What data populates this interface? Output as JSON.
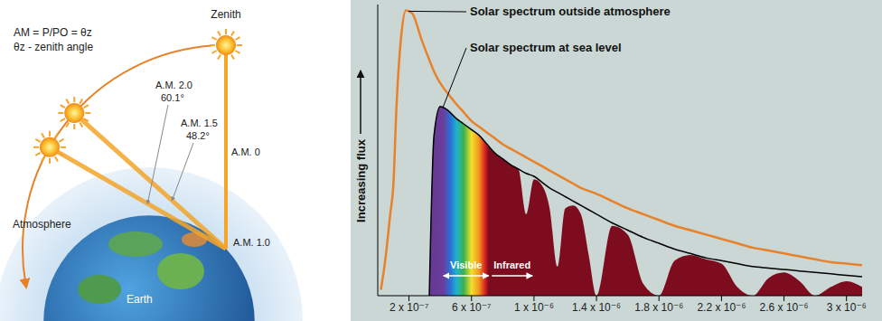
{
  "diagram": {
    "formula": "AM = P/PO = θz",
    "formula_note": "θz - zenith angle",
    "zenith_label": "Zenith",
    "atmosphere_label": "Atmosphere",
    "earth_label": "Earth",
    "positions": [
      {
        "label": "A.M. 0"
      },
      {
        "label": "A.M. 1.0"
      },
      {
        "label": "A.M. 1.5",
        "angle_label": "48.2°",
        "zenith_angle": 48.2
      },
      {
        "label": "A.M. 2.0",
        "angle_label": "60.1°",
        "zenith_angle": 60.1
      }
    ]
  },
  "chart_data": {
    "type": "line",
    "ylabel": "Increasing flux",
    "x": [
      2e-08,
      5e-08,
      8e-08,
      1e-07,
      1.2e-07,
      1.5e-07,
      1.8e-07,
      2.2e-07,
      2.8e-07,
      3.3e-07,
      3.6e-07,
      4e-07,
      4.4e-07,
      5e-07,
      5.5e-07,
      6e-07,
      6.5e-07,
      7e-07,
      7.5e-07,
      8e-07,
      8.5e-07,
      9e-07,
      9.5e-07,
      1e-06,
      1.05e-06,
      1.1e-06,
      1.15e-06,
      1.2e-06,
      1.25e-06,
      1.3e-06,
      1.35e-06,
      1.4e-06,
      1.5e-06,
      1.6e-06,
      1.7e-06,
      1.8e-06,
      1.9e-06,
      2e-06,
      2.1e-06,
      2.2e-06,
      2.3e-06,
      2.4e-06,
      2.5e-06,
      2.6e-06,
      2.7e-06,
      2.8e-06,
      2.9e-06,
      3e-06,
      3.1e-06
    ],
    "series": [
      {
        "type": "area",
        "color": "#7d0d1e",
        "values": [
          null,
          null,
          null,
          null,
          null,
          null,
          null,
          null,
          null,
          0,
          55,
          65,
          64,
          61,
          59,
          57,
          55,
          52,
          49,
          47,
          45,
          43.5,
          28,
          40,
          38,
          30,
          10,
          30,
          31,
          28,
          14,
          0,
          24,
          21,
          4,
          0,
          12,
          14,
          12.5,
          11,
          3,
          0,
          6,
          8,
          5,
          0,
          3,
          5,
          3
        ]
      },
      {
        "name": "Solar spectrum at sea level",
        "type": "line",
        "color": "#000000",
        "values": [
          null,
          null,
          null,
          null,
          null,
          null,
          null,
          null,
          null,
          0,
          55,
          65,
          64,
          61,
          59,
          57,
          55,
          52,
          49,
          47,
          45,
          43.5,
          42,
          41,
          39,
          37,
          35.5,
          34,
          32.5,
          31,
          29.5,
          28,
          25,
          22.5,
          20,
          18,
          16,
          14.5,
          13,
          12,
          11,
          10,
          9.5,
          9,
          8.5,
          8,
          7.5,
          7,
          6.5
        ]
      },
      {
        "name": "Solar spectrum outside atmosphere",
        "type": "line",
        "color": "#e8822a",
        "values": [
          2,
          13,
          28,
          38,
          65,
          89,
          98,
          97,
          88,
          81,
          77,
          73,
          70,
          66,
          63,
          60,
          58,
          56,
          54,
          52,
          50.5,
          49,
          47.5,
          46,
          44.5,
          43,
          41.5,
          40,
          38.5,
          37,
          36,
          35,
          32.5,
          30,
          28,
          26,
          24,
          22.5,
          21,
          19.5,
          18,
          16.5,
          15.5,
          14.5,
          13.5,
          12.5,
          11.5,
          11,
          10.5
        ]
      }
    ],
    "annotations": [
      {
        "text": "Visible",
        "xrange": [
          4.2e-07,
          7.1e-07
        ]
      },
      {
        "text": "Infrared",
        "xrange": [
          7.3e-07,
          9.9e-07
        ]
      }
    ],
    "xlim": [
      0,
      3.1e-06
    ],
    "xticks": [
      {
        "value": 2e-07,
        "label": "2 x 10⁻⁷"
      },
      {
        "value": 6e-07,
        "label": "6 x 10⁻⁷"
      },
      {
        "value": 1e-06,
        "label": "1 x 10⁻⁶"
      },
      {
        "value": 1.4e-06,
        "label": "1.4 x 10⁻⁶"
      },
      {
        "value": 1.8e-06,
        "label": "1.8 x 10⁻⁶"
      },
      {
        "value": 2.2e-06,
        "label": "2.2 x 10⁻⁶"
      },
      {
        "value": 2.6e-06,
        "label": "2.6 x 10⁻⁶"
      },
      {
        "value": 3e-06,
        "label": "3 x 10⁻⁶"
      }
    ],
    "ylim": [
      0,
      100
    ],
    "yticks": [],
    "tick_labels": "x",
    "grid": false
  }
}
